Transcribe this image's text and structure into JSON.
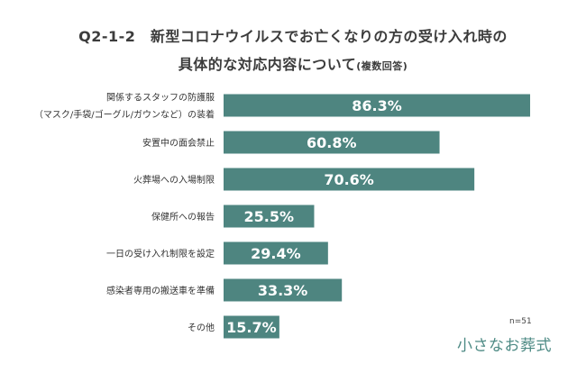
{
  "title": {
    "line1": "Q2-1-2　新型コロナウイルスでお亡くなりの方の受け入れ時の",
    "line2": "具体的な対応内容について",
    "note": "(複数回答)"
  },
  "sample_size": "n=51",
  "logo": "小さなお葬式",
  "colors": {
    "bar": "#4e8580",
    "bar_label": "#ffffff",
    "category_text": "#333333"
  },
  "chart_data": {
    "type": "bar",
    "orientation": "horizontal",
    "unit": "%",
    "categories": [
      [
        "関係するスタッフの防護服",
        "（マスク/手袋/ゴーグル/ガウンなど）の装着"
      ],
      [
        "安置中の面会禁止"
      ],
      [
        "火葬場への入場制限"
      ],
      [
        "保健所への報告"
      ],
      [
        "一日の受け入れ制限を設定"
      ],
      [
        "感染者専用の搬送車を準備"
      ],
      [
        "その他"
      ]
    ],
    "values": [
      86.3,
      60.8,
      70.6,
      25.5,
      29.4,
      33.3,
      15.7
    ],
    "value_labels": [
      "86.3%",
      "60.8%",
      "70.6%",
      "25.5%",
      "29.4%",
      "33.3%",
      "15.7%"
    ],
    "xlim": [
      0,
      100
    ],
    "grid": false,
    "legend": "none"
  }
}
